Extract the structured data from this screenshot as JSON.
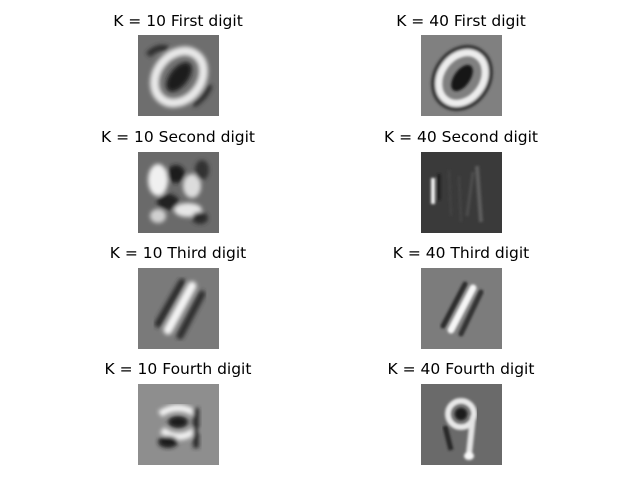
{
  "panels": [
    {
      "title": "K = 10 First digit",
      "digit": "0",
      "background": "#6e6e6e"
    },
    {
      "title": "K = 40 First digit",
      "digit": "0",
      "background": "#808080"
    },
    {
      "title": "K = 10 Second digit",
      "digit": "noise",
      "background": "#6a6a6a"
    },
    {
      "title": "K = 40 Second digit",
      "digit": "1-faint",
      "background": "#3a3a3a"
    },
    {
      "title": "K = 10 Third digit",
      "digit": "1",
      "background": "#7a7a7a"
    },
    {
      "title": "K = 40 Third digit",
      "digit": "1",
      "background": "#7c7c7c"
    },
    {
      "title": "K = 10 Fourth digit",
      "digit": "4",
      "background": "#8e8e8e"
    },
    {
      "title": "K = 40 Fourth digit",
      "digit": "9",
      "background": "#6a6a6a"
    }
  ]
}
